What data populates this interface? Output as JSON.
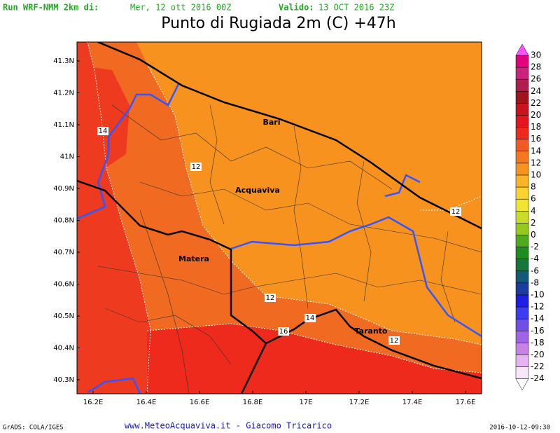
{
  "header": {
    "run_label": "Run WRF-NMM 2km di:",
    "run_date": "Mer, 12 ott 2016 00Z",
    "valid_label": "Valido:",
    "valid_date": "13 OCT 2016 23Z"
  },
  "title": "Punto di Rugiada 2m (C) +47h",
  "lat_labels": [
    "41.3N",
    "41.2N",
    "41.1N",
    "41N",
    "40.9N",
    "40.8N",
    "40.7N",
    "40.6N",
    "40.5N",
    "40.4N",
    "40.3N"
  ],
  "lon_labels": [
    "16.2E",
    "16.4E",
    "16.6E",
    "16.8E",
    "17E",
    "17.2E",
    "17.4E",
    "17.6E"
  ],
  "cities": [
    "Bari",
    "Acquaviva",
    "Matera",
    "Taranto"
  ],
  "contour_labels": [
    14,
    12,
    12,
    12,
    14,
    16,
    12
  ],
  "colorbar": {
    "levels": [
      30,
      28,
      26,
      24,
      22,
      20,
      18,
      16,
      14,
      12,
      10,
      8,
      6,
      4,
      2,
      0,
      -2,
      -4,
      -6,
      -8,
      -10,
      -12,
      -14,
      -16,
      -18,
      -20,
      -22,
      -24
    ],
    "colors": [
      "#e5007e",
      "#c8247a",
      "#b01e50",
      "#a0141e",
      "#c8141e",
      "#e6141e",
      "#ee2a1c",
      "#f05a23",
      "#f5781e",
      "#f79420",
      "#f9b428",
      "#fad232",
      "#f0e632",
      "#c8dc28",
      "#96c81e",
      "#50aa1e",
      "#1e8c1e",
      "#14783c",
      "#145a78",
      "#1e3ca0",
      "#1e1ee6",
      "#3c3cf0",
      "#6e50e6",
      "#a064e6",
      "#c882e6",
      "#e6b4f0",
      "#f8e6fa"
    ],
    "over_color": "#ff50ff",
    "under_color": "#ffffff"
  },
  "footer": {
    "left": "GrADS: COLA/IGES",
    "center": "www.MeteoAcquaviva.it  -  Giacomo Tricarico",
    "right": "2016-10-12-09:30"
  }
}
